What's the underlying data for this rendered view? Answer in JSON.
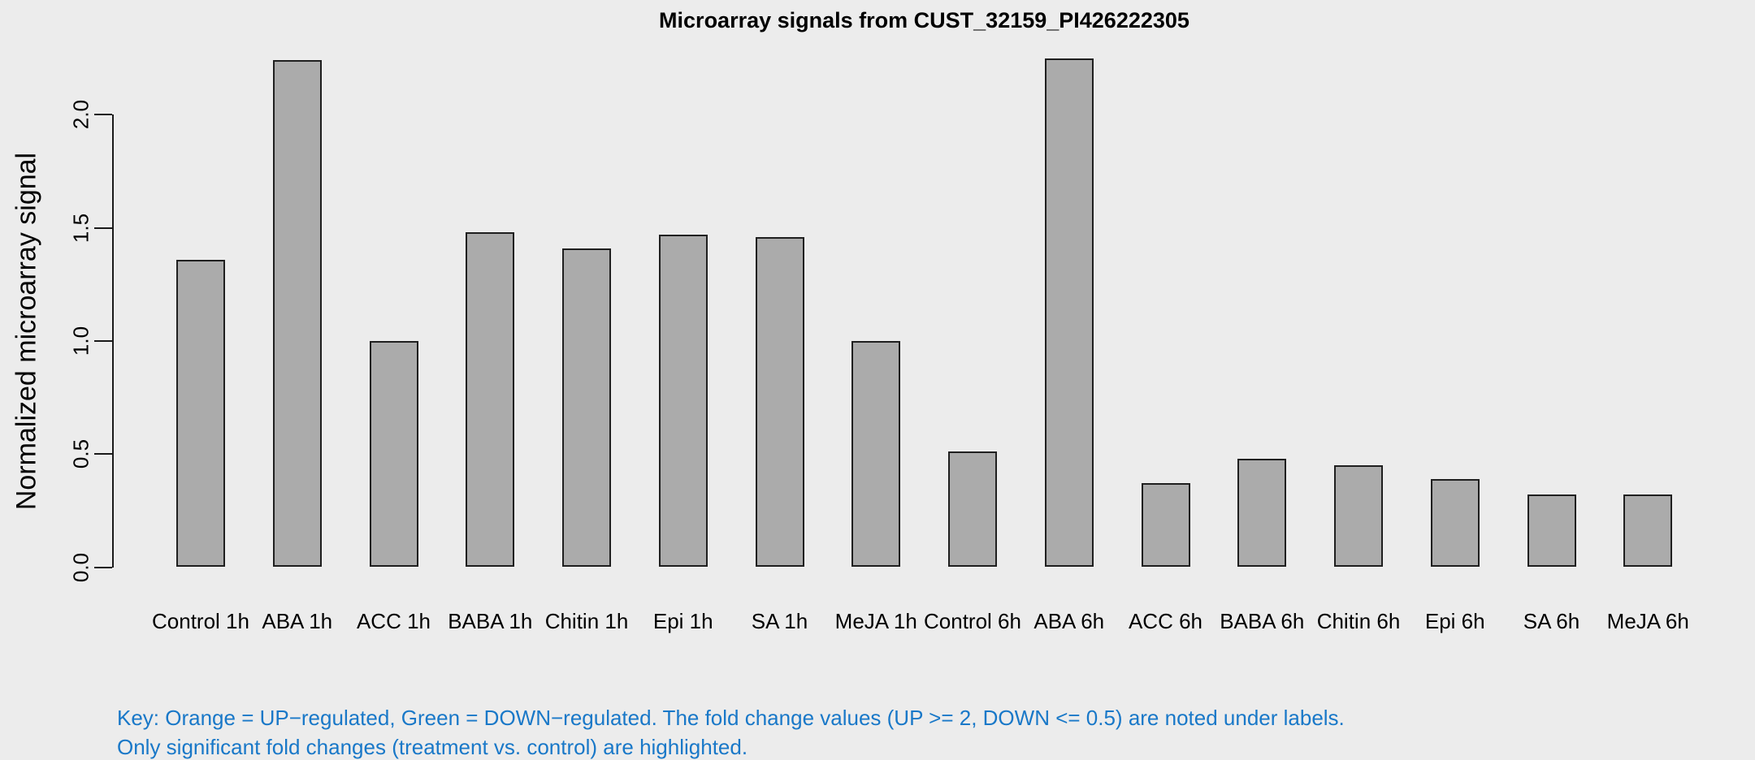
{
  "chart_data": {
    "type": "bar",
    "title": "Microarray signals from CUST_32159_PI426222305",
    "xlabel": "",
    "ylabel": "Normalized microarray signal",
    "categories": [
      "Control 1h",
      "ABA 1h",
      "ACC 1h",
      "BABA 1h",
      "Chitin 1h",
      "Epi 1h",
      "SA 1h",
      "MeJA 1h",
      "Control 6h",
      "ABA 6h",
      "ACC 6h",
      "BABA 6h",
      "Chitin 6h",
      "Epi 6h",
      "SA 6h",
      "MeJA 6h"
    ],
    "values": [
      1.36,
      2.24,
      1.0,
      1.48,
      1.41,
      1.47,
      1.46,
      1.0,
      0.51,
      2.25,
      0.37,
      0.48,
      0.45,
      0.39,
      0.32,
      0.32
    ],
    "yticks": [
      0.0,
      0.5,
      1.0,
      1.5,
      2.0
    ],
    "ytick_labels": [
      "0.0",
      "0.5",
      "1.0",
      "1.5",
      "2.0"
    ],
    "ylim": [
      0,
      2.26
    ],
    "grid": false,
    "legend": false,
    "bar_color": "#ABABAB",
    "bar_border_color": "#1F1F1F",
    "background_color": "#ECECEC",
    "title_color": "#000000",
    "axis_color": "#1A1A1A"
  },
  "footnote": {
    "line1": "Key: Orange = UP−regulated, Green = DOWN−regulated. The fold change values (UP >= 2, DOWN <= 0.5) are noted under labels.",
    "line2": "Only significant fold changes (treatment vs. control) are highlighted.",
    "color": "#1978C8"
  }
}
